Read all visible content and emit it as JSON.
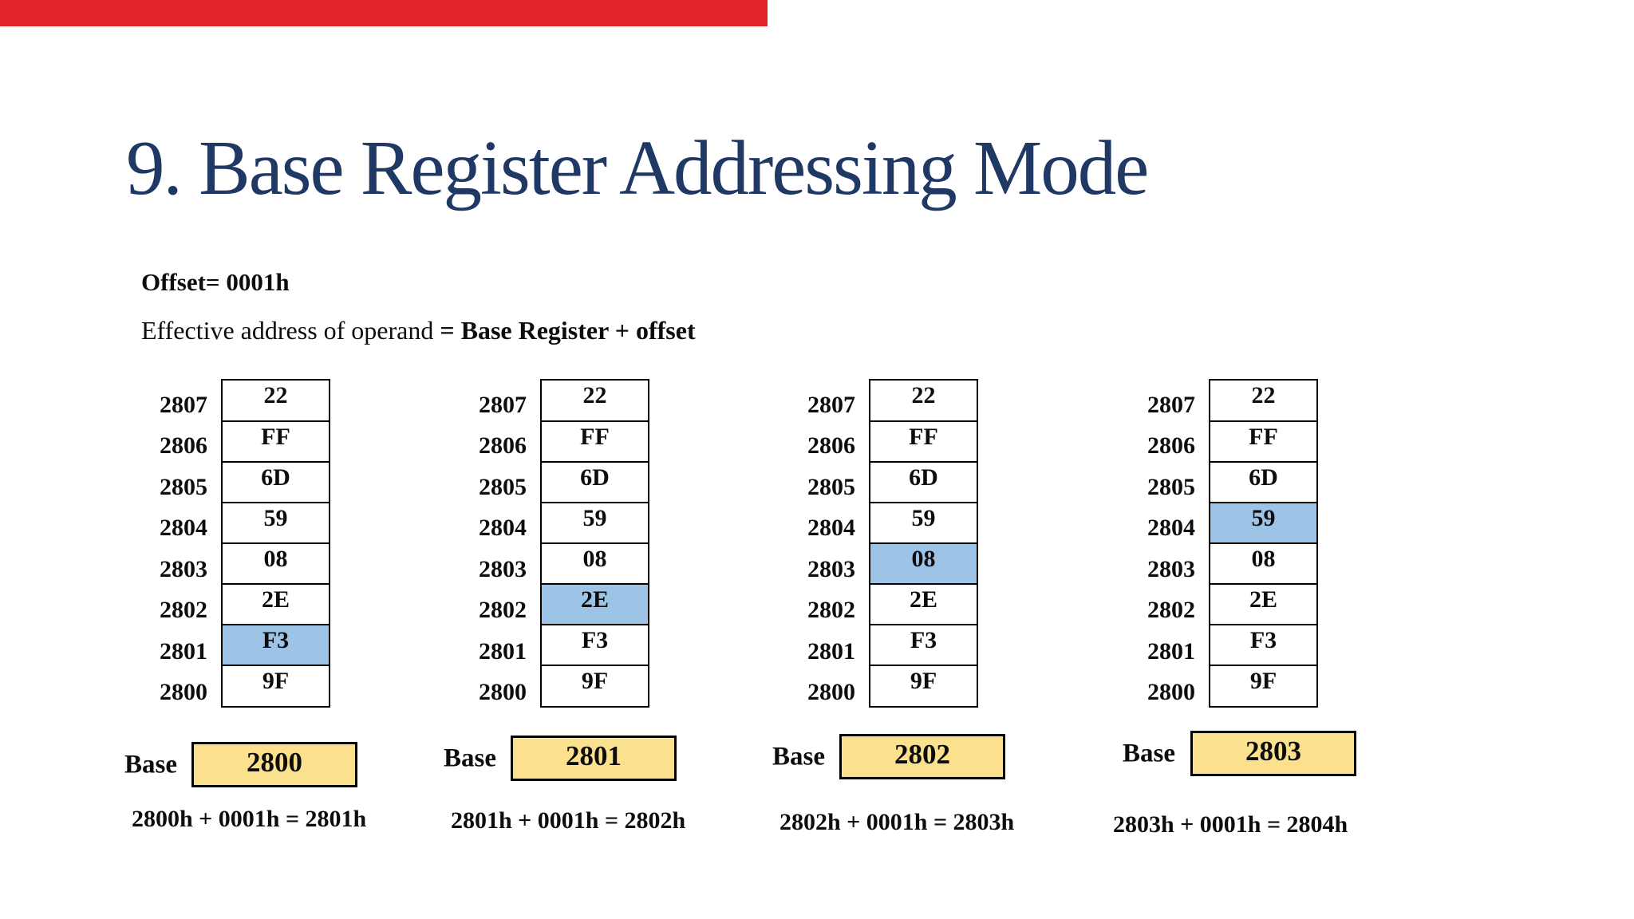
{
  "slide": {
    "title": "9. Base Register Addressing Mode",
    "offset_text": "Offset= 0001h",
    "ea_prefix": "Effective address of operand ",
    "ea_bold": "= Base Register + offset"
  },
  "memory": {
    "addresses": [
      "2807",
      "2806",
      "2805",
      "2804",
      "2803",
      "2802",
      "2801",
      "2800"
    ],
    "values": [
      "22",
      "FF",
      "6D",
      "59",
      "08",
      "2E",
      "F3",
      "9F"
    ]
  },
  "columns": [
    {
      "base_label": "Base",
      "base_value": "2800",
      "highlight_address": "2801",
      "highlight_value": "F3",
      "equation": "2800h + 0001h = 2801h"
    },
    {
      "base_label": "Base",
      "base_value": "2801",
      "highlight_address": "2802",
      "highlight_value": "2E",
      "equation": "2801h + 0001h = 2802h"
    },
    {
      "base_label": "Base",
      "base_value": "2802",
      "highlight_address": "2803",
      "highlight_value": "08",
      "equation": "2802h + 0001h = 2803h"
    },
    {
      "base_label": "Base",
      "base_value": "2803",
      "highlight_address": "2804",
      "highlight_value": "59",
      "equation": "2803h + 0001h = 2804h"
    }
  ],
  "colors": {
    "title_text": "#1f3864",
    "body_text": "#0d0d0d",
    "highlight_cell": "#9dc3e6",
    "base_box_fill": "#fbe18e",
    "progress_bar": "#e3232a",
    "cell_border": "#000000"
  }
}
